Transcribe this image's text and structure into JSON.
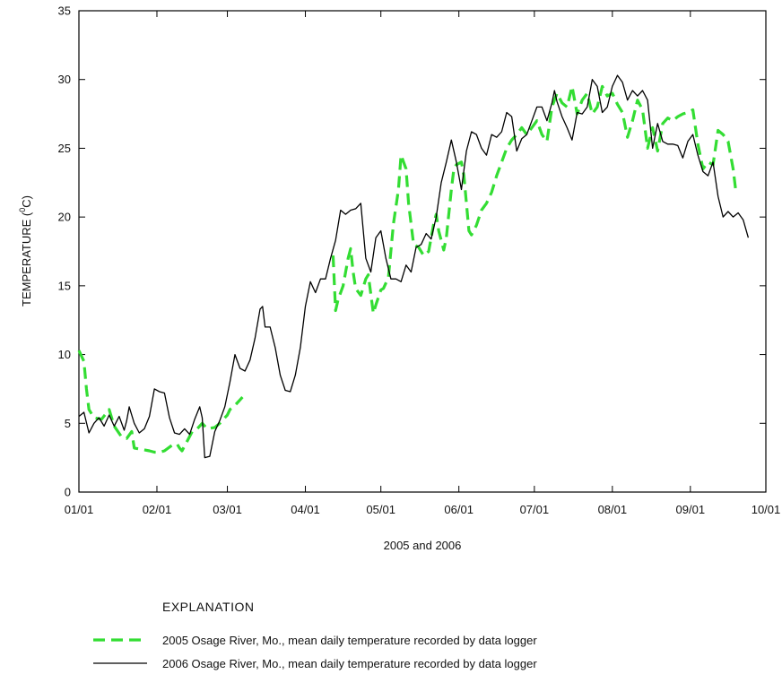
{
  "chart_data": {
    "type": "line",
    "xlabel": "2005 and 2006",
    "ylabel": "TEMPERATURE (",
    "ylabel_sup": "0",
    "ylabel_unit": "C)",
    "x_tick_labels": [
      "01/01",
      "02/01",
      "03/01",
      "04/01",
      "05/01",
      "06/01",
      "07/01",
      "08/01",
      "09/01",
      "10/01"
    ],
    "x_tick_days": [
      0,
      31,
      59,
      90,
      120,
      151,
      181,
      212,
      243,
      273
    ],
    "xlim": [
      0,
      273
    ],
    "ylim": [
      0,
      35
    ],
    "y_ticks": [
      0,
      5,
      10,
      15,
      20,
      25,
      30,
      35
    ],
    "grid": false,
    "legend_title": "EXPLANATION",
    "series": [
      {
        "name": "2005 Osage River, Mo., mean daily temperature recorded by data logger",
        "color": "#33dd33",
        "style": "dashed",
        "segments": [
          [
            [
              0,
              10.3
            ],
            [
              2,
              9.5
            ],
            [
              3,
              7.5
            ],
            [
              4,
              6.0
            ],
            [
              6,
              5.4
            ],
            [
              9,
              5.3
            ],
            [
              12,
              6.0
            ],
            [
              14,
              4.8
            ],
            [
              17,
              4.0
            ],
            [
              19,
              3.9
            ],
            [
              21,
              4.4
            ],
            [
              22,
              3.2
            ],
            [
              25,
              3.1
            ],
            [
              28,
              3.0
            ],
            [
              30,
              2.9
            ],
            [
              32,
              2.9
            ],
            [
              34,
              3.0
            ],
            [
              37,
              3.4
            ],
            [
              39,
              3.5
            ],
            [
              40,
              3.2
            ],
            [
              41,
              3.0
            ],
            [
              43,
              3.7
            ],
            [
              45,
              4.4
            ],
            [
              47,
              4.6
            ],
            [
              49,
              5.0
            ],
            [
              51,
              4.6
            ],
            [
              54,
              4.7
            ],
            [
              56,
              5.0
            ],
            [
              58,
              5.4
            ],
            [
              59,
              5.6
            ],
            [
              60,
              6.0
            ],
            [
              62,
              6.3
            ],
            [
              64,
              6.7
            ],
            [
              65,
              6.9
            ]
          ],
          [
            [
              101,
              17.2
            ],
            [
              102,
              13.2
            ],
            [
              103,
              14.0
            ],
            [
              105,
              15.0
            ],
            [
              107,
              17.0
            ],
            [
              108,
              17.7
            ],
            [
              109,
              16.0
            ],
            [
              110,
              14.8
            ],
            [
              112,
              14.3
            ],
            [
              114,
              15.5
            ],
            [
              115,
              15.8
            ],
            [
              117,
              13.0
            ],
            [
              118,
              13.6
            ],
            [
              120,
              14.7
            ],
            [
              121,
              14.8
            ],
            [
              123,
              15.6
            ],
            [
              125,
              19.5
            ],
            [
              127,
              22.0
            ],
            [
              128,
              24.5
            ],
            [
              130,
              23.5
            ],
            [
              131,
              21.0
            ],
            [
              133,
              18.0
            ],
            [
              135,
              17.8
            ],
            [
              137,
              17.2
            ],
            [
              139,
              17.5
            ],
            [
              141,
              19.5
            ],
            [
              142,
              20.2
            ],
            [
              143,
              19.0
            ],
            [
              145,
              17.6
            ],
            [
              146,
              18.5
            ],
            [
              148,
              22.0
            ],
            [
              149,
              23.5
            ],
            [
              150,
              23.8
            ],
            [
              152,
              24.0
            ],
            [
              153,
              23.0
            ],
            [
              155,
              19.0
            ],
            [
              156,
              18.7
            ],
            [
              158,
              19.4
            ],
            [
              160,
              20.5
            ],
            [
              162,
              21.0
            ],
            [
              164,
              21.8
            ],
            [
              166,
              23.0
            ],
            [
              168,
              24.0
            ],
            [
              170,
              25.0
            ],
            [
              172,
              25.6
            ],
            [
              174,
              26.0
            ],
            [
              176,
              26.5
            ],
            [
              178,
              26.0
            ],
            [
              180,
              26.5
            ],
            [
              182,
              27.0
            ],
            [
              184,
              26.0
            ],
            [
              186,
              25.5
            ],
            [
              188,
              28.0
            ],
            [
              190,
              29.0
            ],
            [
              192,
              28.3
            ],
            [
              194,
              28.0
            ],
            [
              196,
              29.5
            ],
            [
              198,
              27.5
            ],
            [
              200,
              28.5
            ],
            [
              202,
              29.0
            ],
            [
              204,
              27.5
            ],
            [
              206,
              28.0
            ],
            [
              208,
              29.5
            ],
            [
              210,
              28.8
            ],
            [
              212,
              29.0
            ],
            [
              214,
              28.2
            ],
            [
              216,
              27.6
            ],
            [
              218,
              25.8
            ],
            [
              220,
              27.0
            ],
            [
              222,
              28.5
            ],
            [
              224,
              27.8
            ],
            [
              226,
              25.0
            ],
            [
              228,
              26.5
            ],
            [
              230,
              24.8
            ],
            [
              232,
              26.8
            ],
            [
              234,
              27.2
            ],
            [
              236,
              27.0
            ],
            [
              238,
              27.3
            ],
            [
              240,
              27.5
            ],
            [
              242,
              27.6
            ],
            [
              244,
              27.8
            ],
            [
              246,
              25.3
            ],
            [
              248,
              23.5
            ],
            [
              250,
              24.0
            ],
            [
              252,
              23.8
            ],
            [
              254,
              26.3
            ],
            [
              256,
              26.0
            ],
            [
              258,
              25.5
            ],
            [
              260,
              23.5
            ],
            [
              261,
              22.0
            ]
          ]
        ]
      },
      {
        "name": "2006 Osage River, Mo.,  mean daily temperature recorded by data logger",
        "color": "#000000",
        "style": "solid",
        "segments": [
          [
            [
              0,
              5.5
            ],
            [
              2,
              5.8
            ],
            [
              4,
              4.3
            ],
            [
              6,
              5.0
            ],
            [
              8,
              5.4
            ],
            [
              10,
              4.8
            ],
            [
              12,
              5.6
            ],
            [
              14,
              4.8
            ],
            [
              16,
              5.5
            ],
            [
              18,
              4.5
            ],
            [
              19,
              5.2
            ],
            [
              20,
              6.2
            ],
            [
              22,
              5.0
            ],
            [
              24,
              4.3
            ],
            [
              26,
              4.6
            ],
            [
              28,
              5.5
            ],
            [
              30,
              7.5
            ],
            [
              32,
              7.3
            ],
            [
              34,
              7.2
            ],
            [
              36,
              5.4
            ],
            [
              38,
              4.3
            ],
            [
              40,
              4.2
            ],
            [
              42,
              4.6
            ],
            [
              44,
              4.2
            ],
            [
              46,
              5.3
            ],
            [
              48,
              6.2
            ],
            [
              49,
              5.4
            ],
            [
              50,
              2.5
            ],
            [
              52,
              2.6
            ],
            [
              54,
              4.4
            ],
            [
              56,
              5.2
            ],
            [
              58,
              6.2
            ],
            [
              60,
              8.0
            ],
            [
              62,
              10.0
            ],
            [
              64,
              9.0
            ],
            [
              66,
              8.8
            ],
            [
              68,
              9.6
            ],
            [
              70,
              11.2
            ],
            [
              72,
              13.3
            ],
            [
              73,
              13.5
            ],
            [
              74,
              12.0
            ],
            [
              76,
              12.0
            ],
            [
              78,
              10.5
            ],
            [
              80,
              8.5
            ],
            [
              82,
              7.4
            ],
            [
              84,
              7.3
            ],
            [
              86,
              8.5
            ],
            [
              88,
              10.5
            ],
            [
              90,
              13.5
            ],
            [
              92,
              15.3
            ],
            [
              94,
              14.5
            ],
            [
              96,
              15.5
            ],
            [
              98,
              15.5
            ],
            [
              100,
              17.0
            ],
            [
              102,
              18.3
            ],
            [
              104,
              20.5
            ],
            [
              106,
              20.2
            ],
            [
              108,
              20.5
            ],
            [
              110,
              20.6
            ],
            [
              112,
              21.0
            ],
            [
              114,
              17.0
            ],
            [
              116,
              16.0
            ],
            [
              118,
              18.5
            ],
            [
              120,
              19.0
            ],
            [
              122,
              17.0
            ],
            [
              124,
              15.5
            ],
            [
              126,
              15.5
            ],
            [
              128,
              15.3
            ],
            [
              130,
              16.5
            ],
            [
              132,
              16.0
            ],
            [
              134,
              17.8
            ],
            [
              136,
              18.0
            ],
            [
              138,
              18.8
            ],
            [
              140,
              18.4
            ],
            [
              142,
              20.0
            ],
            [
              144,
              22.5
            ],
            [
              146,
              24.0
            ],
            [
              148,
              25.6
            ],
            [
              150,
              24.0
            ],
            [
              152,
              22.0
            ],
            [
              154,
              24.8
            ],
            [
              156,
              26.2
            ],
            [
              158,
              26.0
            ],
            [
              160,
              25.0
            ],
            [
              162,
              24.5
            ],
            [
              164,
              26.0
            ],
            [
              166,
              25.8
            ],
            [
              168,
              26.2
            ],
            [
              170,
              27.6
            ],
            [
              172,
              27.3
            ],
            [
              174,
              24.8
            ],
            [
              176,
              25.7
            ],
            [
              178,
              26.0
            ],
            [
              180,
              27.0
            ],
            [
              182,
              28.0
            ],
            [
              184,
              28.0
            ],
            [
              186,
              27.0
            ],
            [
              188,
              28.3
            ],
            [
              189,
              29.2
            ],
            [
              190,
              28.4
            ],
            [
              192,
              27.3
            ],
            [
              194,
              26.5
            ],
            [
              196,
              25.6
            ],
            [
              198,
              27.6
            ],
            [
              200,
              27.5
            ],
            [
              202,
              28.0
            ],
            [
              204,
              30.0
            ],
            [
              206,
              29.5
            ],
            [
              208,
              27.6
            ],
            [
              210,
              28.0
            ],
            [
              212,
              29.5
            ],
            [
              214,
              30.3
            ],
            [
              216,
              29.8
            ],
            [
              218,
              28.5
            ],
            [
              220,
              29.2
            ],
            [
              222,
              28.8
            ],
            [
              224,
              29.2
            ],
            [
              226,
              28.5
            ],
            [
              228,
              25.0
            ],
            [
              230,
              26.8
            ],
            [
              232,
              25.5
            ],
            [
              234,
              25.3
            ],
            [
              236,
              25.3
            ],
            [
              238,
              25.2
            ],
            [
              240,
              24.3
            ],
            [
              242,
              25.5
            ],
            [
              244,
              26.0
            ],
            [
              246,
              24.5
            ],
            [
              248,
              23.3
            ],
            [
              250,
              23.0
            ],
            [
              252,
              24.0
            ],
            [
              254,
              21.5
            ],
            [
              256,
              20.0
            ],
            [
              258,
              20.4
            ],
            [
              260,
              20.0
            ],
            [
              262,
              20.3
            ],
            [
              264,
              19.8
            ],
            [
              266,
              18.5
            ]
          ]
        ]
      }
    ]
  },
  "colors": {
    "series_2005": "#33dd33",
    "series_2006": "#000000",
    "axis": "#000000"
  }
}
